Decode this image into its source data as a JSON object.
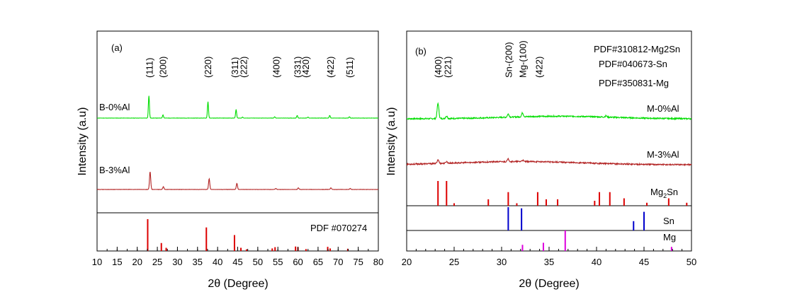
{
  "chart_data": [
    {
      "type": "line",
      "panel_label": "(a)",
      "xlabel": "2θ (Degree)",
      "ylabel": "Intensity (a.u)",
      "xlim": [
        10,
        80
      ],
      "xticks": [
        10,
        15,
        20,
        25,
        30,
        35,
        40,
        45,
        50,
        55,
        60,
        65,
        70,
        75,
        80
      ],
      "grid": false,
      "colors": {
        "B-0%Al": "#00dd00",
        "B-3%Al": "#b22222",
        "PDF": "#dd0000"
      },
      "series": [
        {
          "name": "B-0%Al",
          "peaks": [
            {
              "x": 22.9,
              "y": 0.7
            },
            {
              "x": 26.4,
              "y": 0.1
            },
            {
              "x": 37.6,
              "y": 0.52
            },
            {
              "x": 44.6,
              "y": 0.27
            },
            {
              "x": 46.2,
              "y": 0.03
            },
            {
              "x": 54.2,
              "y": 0.04
            },
            {
              "x": 59.8,
              "y": 0.08
            },
            {
              "x": 62.5,
              "y": 0.03
            },
            {
              "x": 67.9,
              "y": 0.08
            },
            {
              "x": 72.8,
              "y": 0.04
            }
          ]
        },
        {
          "name": "B-3%Al",
          "peaks": [
            {
              "x": 23.2,
              "y": 0.56
            },
            {
              "x": 26.5,
              "y": 0.09
            },
            {
              "x": 37.9,
              "y": 0.34
            },
            {
              "x": 44.8,
              "y": 0.19
            },
            {
              "x": 54.5,
              "y": 0.03
            },
            {
              "x": 60.1,
              "y": 0.05
            },
            {
              "x": 68.2,
              "y": 0.05
            },
            {
              "x": 73.0,
              "y": 0.03
            }
          ]
        }
      ],
      "reference": {
        "name": "PDF #070274",
        "sticks": [
          {
            "x": 22.6,
            "y": 1.0
          },
          {
            "x": 26.0,
            "y": 0.25
          },
          {
            "x": 27.2,
            "y": 0.1
          },
          {
            "x": 37.2,
            "y": 0.74
          },
          {
            "x": 44.2,
            "y": 0.5
          },
          {
            "x": 45.8,
            "y": 0.1
          },
          {
            "x": 47.2,
            "y": 0.05
          },
          {
            "x": 53.6,
            "y": 0.08
          },
          {
            "x": 54.3,
            "y": 0.12
          },
          {
            "x": 59.4,
            "y": 0.14
          },
          {
            "x": 60.0,
            "y": 0.12
          },
          {
            "x": 62.0,
            "y": 0.06
          },
          {
            "x": 67.4,
            "y": 0.13
          },
          {
            "x": 68.0,
            "y": 0.08
          },
          {
            "x": 72.4,
            "y": 0.07
          }
        ]
      },
      "annotations": [
        {
          "text": "(111)",
          "x": 23.0
        },
        {
          "text": "(200)",
          "x": 26.3
        },
        {
          "text": "(220)",
          "x": 37.5
        },
        {
          "text": "(311)",
          "x": 44.2
        },
        {
          "text": "(222)",
          "x": 46.4
        },
        {
          "text": "(400)",
          "x": 54.5
        },
        {
          "text": "(331)",
          "x": 59.8
        },
        {
          "text": "(420)",
          "x": 61.8
        },
        {
          "text": "(422)",
          "x": 68.0
        },
        {
          "text": "(511)",
          "x": 72.8
        }
      ]
    },
    {
      "type": "line",
      "panel_label": "(b)",
      "xlabel": "2θ (Degree)",
      "ylabel": "Intensity (a.u)",
      "xlim": [
        20,
        50
      ],
      "xticks": [
        20,
        25,
        30,
        35,
        40,
        45,
        50
      ],
      "grid": false,
      "colors": {
        "M-0%Al": "#00dd00",
        "M-3%Al": "#b22222",
        "Mg2Sn": "#dd0000",
        "Sn": "#0000cc",
        "Mg": "#dd00dd"
      },
      "series": [
        {
          "name": "M-0%Al",
          "peaks": [
            {
              "x": 23.3,
              "y": 0.72
            },
            {
              "x": 24.2,
              "y": 0.12
            },
            {
              "x": 30.7,
              "y": 0.15
            },
            {
              "x": 32.2,
              "y": 0.18
            },
            {
              "x": 41.0,
              "y": 0.06
            }
          ]
        },
        {
          "name": "M-3%Al",
          "peaks": [
            {
              "x": 23.3,
              "y": 0.18
            },
            {
              "x": 24.2,
              "y": 0.08
            },
            {
              "x": 30.7,
              "y": 0.12
            },
            {
              "x": 32.2,
              "y": 0.06
            }
          ]
        }
      ],
      "references": [
        {
          "name": "Mg2Sn",
          "sample_label": "Mg2Sn",
          "legend": "PDF#310812-Mg2Sn",
          "sticks": [
            {
              "x": 23.3,
              "y": 1.0
            },
            {
              "x": 24.2,
              "y": 1.0
            },
            {
              "x": 25.0,
              "y": 0.1
            },
            {
              "x": 28.6,
              "y": 0.26
            },
            {
              "x": 30.7,
              "y": 0.55
            },
            {
              "x": 31.6,
              "y": 0.1
            },
            {
              "x": 33.8,
              "y": 0.55
            },
            {
              "x": 34.7,
              "y": 0.26
            },
            {
              "x": 35.9,
              "y": 0.26
            },
            {
              "x": 39.8,
              "y": 0.2
            },
            {
              "x": 40.3,
              "y": 0.55
            },
            {
              "x": 41.4,
              "y": 0.55
            },
            {
              "x": 42.9,
              "y": 0.3
            },
            {
              "x": 45.3,
              "y": 0.12
            },
            {
              "x": 47.6,
              "y": 0.3
            },
            {
              "x": 49.5,
              "y": 0.12
            }
          ]
        },
        {
          "name": "Sn",
          "sample_label": "Sn",
          "legend": "PDF#040673-Sn",
          "sticks": [
            {
              "x": 30.7,
              "y": 1.0
            },
            {
              "x": 32.1,
              "y": 0.95
            },
            {
              "x": 43.9,
              "y": 0.4
            },
            {
              "x": 45.0,
              "y": 0.8
            }
          ]
        },
        {
          "name": "Mg",
          "sample_label": "Mg",
          "legend": "PDF#350831-Mg",
          "sticks": [
            {
              "x": 32.2,
              "y": 0.3
            },
            {
              "x": 34.4,
              "y": 0.4
            },
            {
              "x": 36.7,
              "y": 1.0
            },
            {
              "x": 47.9,
              "y": 0.2
            }
          ]
        }
      ],
      "annotations": [
        {
          "text": "(400)",
          "x": 23.3
        },
        {
          "text": "(221)",
          "x": 24.3
        },
        {
          "text": "Sn-(200)",
          "x": 30.7
        },
        {
          "text": "Mg-(100)",
          "x": 32.2
        },
        {
          "text": "(422)",
          "x": 33.9
        }
      ]
    }
  ]
}
